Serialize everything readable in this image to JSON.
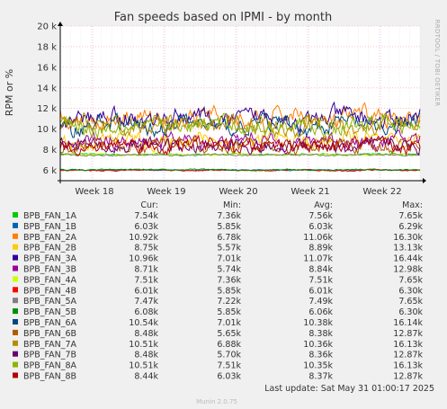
{
  "chart_data": {
    "type": "line",
    "title": "Fan speeds based on IPMI - by month",
    "ylabel": "RPM or %",
    "side_label": "RRDTOOL / TOBI OETIKER",
    "footer": "Munin 2.0.75",
    "ylim": [
      5000,
      20000
    ],
    "y_ticks": [
      {
        "value": 6000,
        "label": "6 k"
      },
      {
        "value": 8000,
        "label": "8 k"
      },
      {
        "value": 10000,
        "label": "10 k"
      },
      {
        "value": 12000,
        "label": "12 k"
      },
      {
        "value": 14000,
        "label": "14 k"
      },
      {
        "value": 16000,
        "label": "16 k"
      },
      {
        "value": 18000,
        "label": "18 k"
      },
      {
        "value": 20000,
        "label": "20 k"
      }
    ],
    "x_range": [
      0,
      5
    ],
    "x_ticks": [
      {
        "value": 0.45,
        "label": "Week 18"
      },
      {
        "value": 1.45,
        "label": "Week 19"
      },
      {
        "value": 2.45,
        "label": "Week 20"
      },
      {
        "value": 3.45,
        "label": "Week 21"
      },
      {
        "value": 4.45,
        "label": "Week 22"
      }
    ],
    "legend_headers": {
      "cur": "Cur:",
      "min": "Min:",
      "avg": "Avg:",
      "max": "Max:"
    },
    "series": [
      {
        "name": "BPB_FAN_1A",
        "color": "#00cc00",
        "cur": "7.54k",
        "min": "7.36k",
        "avg": "7.56k",
        "max": "7.65k"
      },
      {
        "name": "BPB_FAN_1B",
        "color": "#0066b3",
        "cur": "6.03k",
        "min": "5.85k",
        "avg": "6.03k",
        "max": "6.29k"
      },
      {
        "name": "BPB_FAN_2A",
        "color": "#ff8000",
        "cur": "10.92k",
        "min": "6.78k",
        "avg": "11.06k",
        "max": "16.30k"
      },
      {
        "name": "BPB_FAN_2B",
        "color": "#ffcc00",
        "cur": "8.75k",
        "min": "5.57k",
        "avg": "8.89k",
        "max": "13.13k"
      },
      {
        "name": "BPB_FAN_3A",
        "color": "#330099",
        "cur": "10.96k",
        "min": "7.01k",
        "avg": "11.07k",
        "max": "16.44k"
      },
      {
        "name": "BPB_FAN_3B",
        "color": "#990099",
        "cur": "8.71k",
        "min": "5.74k",
        "avg": "8.84k",
        "max": "12.98k"
      },
      {
        "name": "BPB_FAN_4A",
        "color": "#ccff00",
        "cur": "7.51k",
        "min": "7.36k",
        "avg": "7.51k",
        "max": "7.65k"
      },
      {
        "name": "BPB_FAN_4B",
        "color": "#ff0000",
        "cur": "6.01k",
        "min": "5.85k",
        "avg": "6.01k",
        "max": "6.30k"
      },
      {
        "name": "BPB_FAN_5A",
        "color": "#808080",
        "cur": "7.47k",
        "min": "7.22k",
        "avg": "7.49k",
        "max": "7.65k"
      },
      {
        "name": "BPB_FAN_5B",
        "color": "#008f00",
        "cur": "6.08k",
        "min": "5.85k",
        "avg": "6.06k",
        "max": "6.30k"
      },
      {
        "name": "BPB_FAN_6A",
        "color": "#00487d",
        "cur": "10.54k",
        "min": "7.01k",
        "avg": "10.38k",
        "max": "16.14k"
      },
      {
        "name": "BPB_FAN_6B",
        "color": "#b35a00",
        "cur": "8.48k",
        "min": "5.65k",
        "avg": "8.38k",
        "max": "12.87k"
      },
      {
        "name": "BPB_FAN_7A",
        "color": "#b38f00",
        "cur": "10.51k",
        "min": "6.88k",
        "avg": "10.36k",
        "max": "16.13k"
      },
      {
        "name": "BPB_FAN_7B",
        "color": "#6b006b",
        "cur": "8.48k",
        "min": "5.70k",
        "avg": "8.36k",
        "max": "12.87k"
      },
      {
        "name": "BPB_FAN_8A",
        "color": "#8fb300",
        "cur": "10.51k",
        "min": "7.51k",
        "avg": "10.35k",
        "max": "16.13k"
      },
      {
        "name": "BPB_FAN_8B",
        "color": "#b30000",
        "cur": "8.44k",
        "min": "6.03k",
        "avg": "8.37k",
        "max": "12.87k"
      }
    ],
    "last_update": "Last update: Sat May 31 01:00:17 2025"
  }
}
